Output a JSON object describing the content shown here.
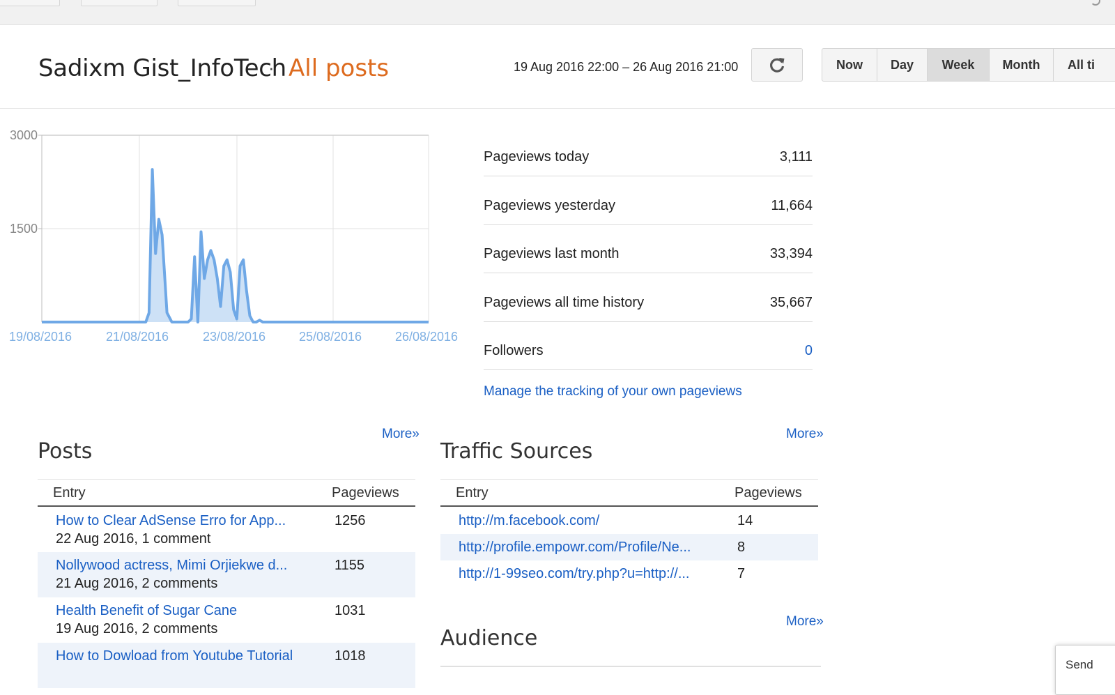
{
  "header": {
    "blog_name": "Sadixm Gist_InfoTech",
    "separator": "·",
    "section": "All posts",
    "date_range": "19 Aug 2016 22:00 – 26 Aug 2016 21:00",
    "refresh_icon": "refresh-icon",
    "ranges": [
      {
        "label": "Now",
        "active": false
      },
      {
        "label": "Day",
        "active": false
      },
      {
        "label": "Week",
        "active": true
      },
      {
        "label": "Month",
        "active": false
      },
      {
        "label": "All ti",
        "active": false
      }
    ]
  },
  "chart_data": {
    "type": "area",
    "title": "",
    "xlabel": "",
    "ylabel": "",
    "ylim": [
      0,
      3000
    ],
    "yticks": [
      "3000",
      "1500"
    ],
    "xticks": [
      "19/08/2016",
      "21/08/2016",
      "23/08/2016",
      "25/08/2016",
      "26/08/2016"
    ],
    "grid": true,
    "color": "#6fa8e6",
    "series": [
      {
        "x": [
          0,
          60,
          64,
          66,
          68,
          70,
          72,
          74,
          77,
          80,
          84,
          88,
          90,
          92,
          94,
          96,
          98,
          100,
          102,
          104,
          106,
          108,
          110,
          112,
          114,
          116,
          118,
          120,
          122,
          124,
          126,
          128,
          130,
          132,
          134,
          136,
          138,
          140,
          142,
          144,
          146,
          148,
          150,
          152,
          154,
          156,
          158,
          160,
          162,
          164,
          166,
          168,
          170,
          172,
          174,
          176,
          178,
          180,
          182,
          184,
          186,
          188,
          190,
          192,
          194,
          196,
          198,
          200,
          203,
          206,
          208,
          210,
          212,
          214,
          216,
          218,
          220,
          222,
          224,
          226,
          228,
          230,
          232,
          234,
          236,
          238
        ],
        "values": [
          0,
          0,
          0,
          150,
          2450,
          1100,
          1650,
          1400,
          150,
          0,
          0,
          0,
          0,
          50,
          1050,
          0,
          1450,
          700,
          1000,
          1150,
          1000,
          700,
          250,
          900,
          1000,
          800,
          200,
          50,
          900,
          1000,
          500,
          100,
          0,
          0,
          30,
          0,
          0,
          0,
          0,
          0,
          0,
          0,
          0,
          0,
          0,
          0,
          0,
          0,
          0,
          0,
          0,
          0,
          0,
          0,
          0,
          0,
          0,
          0,
          0,
          0,
          0,
          0,
          0,
          0,
          0,
          0,
          0,
          0,
          0,
          0,
          0,
          0,
          0,
          0,
          0,
          0,
          0,
          0,
          0,
          0,
          0,
          0,
          0,
          0,
          0,
          0
        ]
      }
    ]
  },
  "stats": [
    {
      "label": "Pageviews today",
      "value": "3,111"
    },
    {
      "label": "Pageviews yesterday",
      "value": "11,664"
    },
    {
      "label": "Pageviews last month",
      "value": "33,394"
    },
    {
      "label": "Pageviews all time history",
      "value": "35,667"
    },
    {
      "label": "Followers",
      "value": "0"
    }
  ],
  "manage_link": "Manage the tracking of your own pageviews",
  "posts": {
    "title": "Posts",
    "more": "More»",
    "col_entry": "Entry",
    "col_views": "Pageviews",
    "rows": [
      {
        "title": "How to Clear AdSense Erro for App...",
        "meta": "22 Aug 2016, 1 comment",
        "views": "1256"
      },
      {
        "title": "Nollywood actress, Mimi Orjiekwe d...",
        "meta": "21 Aug 2016, 2 comments",
        "views": "1155"
      },
      {
        "title": "Health Benefit of Sugar Cane",
        "meta": "19 Aug 2016, 2 comments",
        "views": "1031"
      },
      {
        "title": "How to Dowload from Youtube Tutorial",
        "meta": "",
        "views": "1018"
      }
    ]
  },
  "traffic": {
    "title": "Traffic Sources",
    "more": "More»",
    "col_entry": "Entry",
    "col_views": "Pageviews",
    "rows": [
      {
        "url": "http://m.facebook.com/",
        "views": "14"
      },
      {
        "url": "http://profile.empowr.com/Profile/Ne...",
        "views": "8"
      },
      {
        "url": "http://1-99seo.com/try.php?u=http://...",
        "views": "7"
      }
    ]
  },
  "audience": {
    "title": "Audience",
    "more": "More»"
  },
  "send_widget": {
    "label": "Send"
  }
}
